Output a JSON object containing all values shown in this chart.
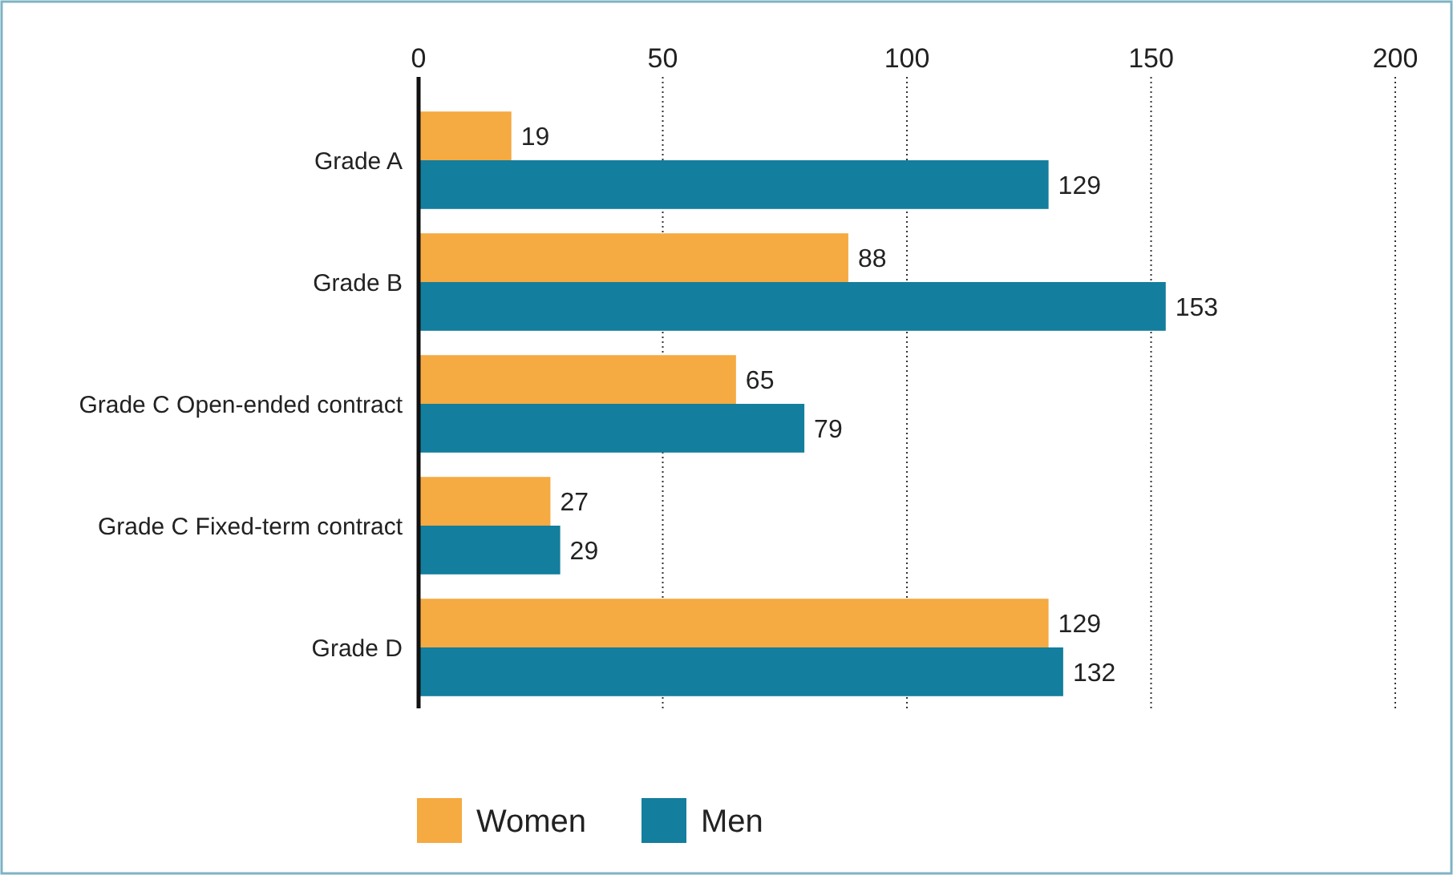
{
  "chart_data": {
    "type": "bar",
    "orientation": "horizontal",
    "categories": [
      "Grade A",
      "Grade B",
      "Grade C Open-ended contract",
      "Grade C Fixed-term contract",
      "Grade D"
    ],
    "series": [
      {
        "name": "Women",
        "color": "#f5aa42",
        "values": [
          19,
          88,
          65,
          27,
          129
        ]
      },
      {
        "name": "Men",
        "color": "#137e9d",
        "values": [
          129,
          153,
          79,
          29,
          132
        ]
      }
    ],
    "xlim": [
      0,
      200
    ],
    "xticks": [
      0,
      50,
      100,
      150,
      200
    ],
    "grid": "x",
    "data_labels": true,
    "legend": "bottom"
  }
}
